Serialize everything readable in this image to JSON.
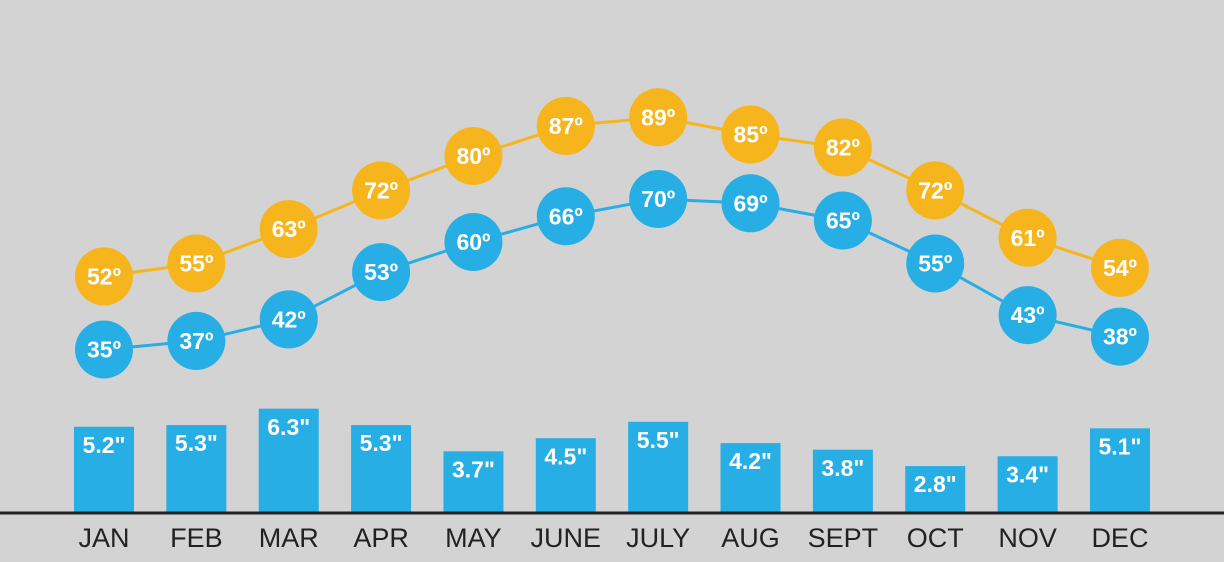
{
  "chart_data": [
    {
      "type": "line",
      "categories": [
        "JAN",
        "FEB",
        "MAR",
        "APR",
        "MAY",
        "JUNE",
        "JULY",
        "AUG",
        "SEPT",
        "OCT",
        "NOV",
        "DEC"
      ],
      "series": [
        {
          "color": "#f6b51d",
          "values": [
            52,
            55,
            63,
            72,
            80,
            87,
            89,
            85,
            82,
            72,
            61,
            54
          ],
          "value_labels": [
            "52º",
            "55º",
            "63º",
            "72º",
            "80º",
            "87º",
            "89º",
            "85º",
            "82º",
            "72º",
            "61º",
            "54º"
          ]
        },
        {
          "color": "#27aee5",
          "values": [
            35,
            37,
            42,
            53,
            60,
            66,
            70,
            69,
            65,
            55,
            43,
            38
          ],
          "value_labels": [
            "35º",
            "37º",
            "42º",
            "53º",
            "60º",
            "66º",
            "70º",
            "69º",
            "65º",
            "55º",
            "43º",
            "38º"
          ]
        }
      ]
    },
    {
      "type": "bar",
      "color": "#27aee5",
      "values": [
        5.2,
        5.3,
        6.3,
        5.3,
        3.7,
        4.5,
        5.5,
        4.2,
        3.8,
        2.8,
        3.4,
        5.1
      ],
      "value_labels": [
        "5.2\"",
        "5.3\"",
        "6.3\"",
        "5.3\"",
        "3.7\"",
        "4.5\"",
        "5.5\"",
        "4.2\"",
        "3.8\"",
        "2.8\"",
        "3.4\"",
        "5.1\""
      ]
    }
  ]
}
